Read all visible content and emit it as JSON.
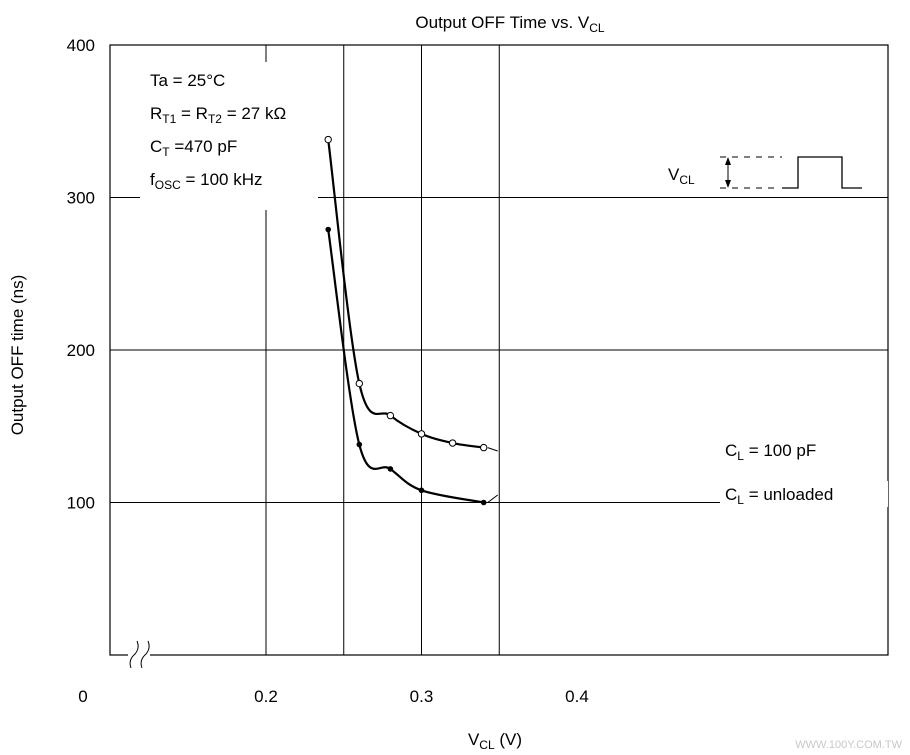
{
  "watermark": "WWW.100Y.COM.TW",
  "chart_data": {
    "type": "line",
    "title": "Output OFF Time vs. V",
    "title_sub": "CL",
    "xlabel": "V",
    "xlabel_sub": "CL",
    "xlabel_unit": " (V)",
    "ylabel": "Output OFF time (ns)",
    "xlim": [
      0,
      0.4
    ],
    "ylim": [
      0,
      400
    ],
    "x_axis_break": true,
    "grid": true,
    "xticks": [
      {
        "value": 0,
        "label": "0"
      },
      {
        "value": 0.2,
        "label": "0.2"
      },
      {
        "value": 0.3,
        "label": "0.3"
      },
      {
        "value": 0.4,
        "label": "0.4"
      }
    ],
    "x_gridlines": [
      0.2,
      0.25,
      0.3,
      0.35
    ],
    "yticks": [
      {
        "value": 100,
        "label": "100"
      },
      {
        "value": 200,
        "label": "200"
      },
      {
        "value": 300,
        "label": "300"
      },
      {
        "value": 400,
        "label": "400"
      }
    ],
    "conditions": [
      {
        "text": "Ta = 25°C"
      },
      {
        "main": "R",
        "sub": "T1",
        "main2": " = R",
        "sub2": "T2",
        "rest": " = 27 kΩ"
      },
      {
        "main": "C",
        "sub": "T",
        "rest": " =470 pF"
      },
      {
        "main": "f",
        "sub": "OSC",
        "rest": " = 100 kHz"
      }
    ],
    "inset_label": {
      "main": "V",
      "sub": "CL"
    },
    "series": [
      {
        "name_main": "C",
        "name_sub": "L",
        "name_rest": " = 100 pF",
        "marker": "open",
        "x": [
          0.24,
          0.26,
          0.28,
          0.3,
          0.32,
          0.34
        ],
        "y": [
          338,
          178,
          157,
          145,
          139,
          136
        ]
      },
      {
        "name_main": "C",
        "name_sub": "L",
        "name_rest": " = unloaded",
        "marker": "filled",
        "x": [
          0.24,
          0.26,
          0.28,
          0.3,
          0.34
        ],
        "y": [
          279,
          138,
          122,
          108,
          100
        ]
      }
    ]
  }
}
